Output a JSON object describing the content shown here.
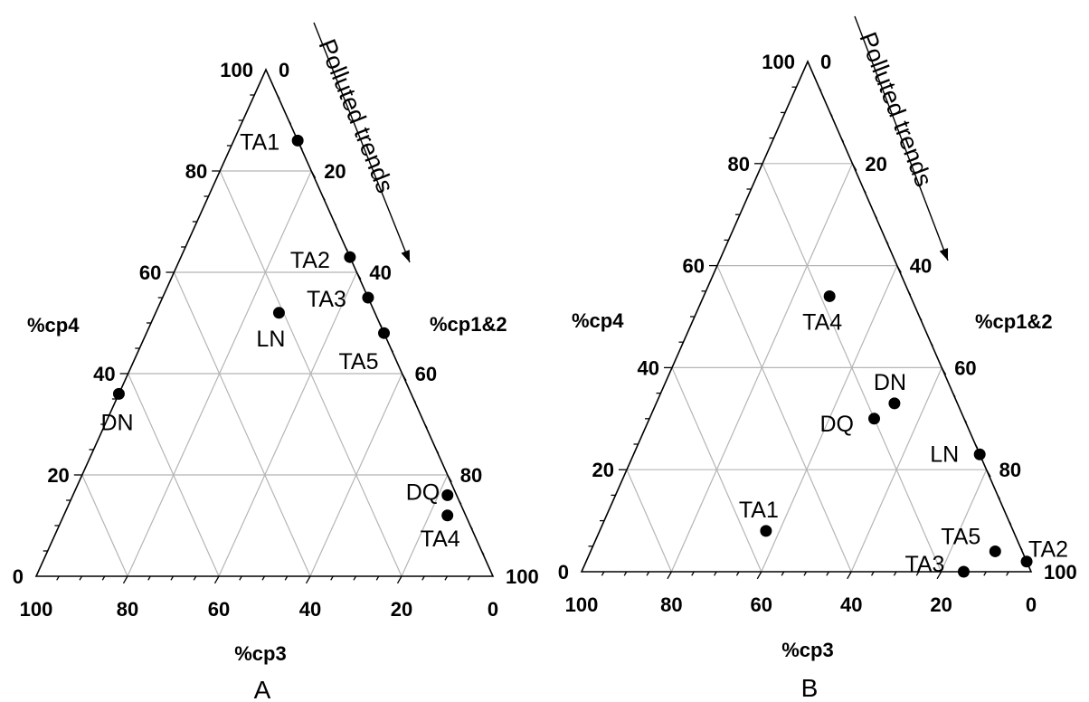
{
  "chart_data": [
    {
      "type": "ternary",
      "panel_label": "A",
      "annotation": "Polluted trends",
      "axes": {
        "left": {
          "title": "%cp4",
          "ticks": [
            "0",
            "20",
            "40",
            "60",
            "80",
            "100"
          ]
        },
        "right": {
          "title": "%cp1&2",
          "ticks": [
            "0",
            "20",
            "40",
            "60",
            "80",
            "100"
          ]
        },
        "bottom": {
          "title": "%cp3",
          "ticks": [
            "100",
            "80",
            "60",
            "40",
            "20",
            "0"
          ]
        }
      },
      "grid": true,
      "points": [
        {
          "label": "TA1",
          "cp4": 86,
          "cp3": 0,
          "cp1_2": 14
        },
        {
          "label": "TA2",
          "cp4": 63,
          "cp3": 0,
          "cp1_2": 37
        },
        {
          "label": "TA3",
          "cp4": 55,
          "cp3": 0,
          "cp1_2": 45
        },
        {
          "label": "TA5",
          "cp4": 48,
          "cp3": 0,
          "cp1_2": 52
        },
        {
          "label": "LN",
          "cp4": 52,
          "cp3": 21,
          "cp1_2": 27
        },
        {
          "label": "DN",
          "cp4": 36,
          "cp3": 64,
          "cp1_2": 0
        },
        {
          "label": "DQ",
          "cp4": 16,
          "cp3": 2,
          "cp1_2": 82
        },
        {
          "label": "TA4",
          "cp4": 12,
          "cp3": 4,
          "cp1_2": 84
        }
      ]
    },
    {
      "type": "ternary",
      "panel_label": "B",
      "annotation": "Polluted trends",
      "axes": {
        "left": {
          "title": "%cp4",
          "ticks": [
            "0",
            "20",
            "40",
            "60",
            "80",
            "100"
          ]
        },
        "right": {
          "title": "%cp1&2",
          "ticks": [
            "0",
            "20",
            "40",
            "60",
            "80",
            "100"
          ]
        },
        "bottom": {
          "title": "%cp3",
          "ticks": [
            "100",
            "80",
            "60",
            "40",
            "20",
            "0"
          ]
        }
      },
      "grid": true,
      "points": [
        {
          "label": "TA4",
          "cp4": 54,
          "cp3": 18,
          "cp1_2": 28
        },
        {
          "label": "DN",
          "cp4": 33,
          "cp3": 14,
          "cp1_2": 53
        },
        {
          "label": "DQ",
          "cp4": 30,
          "cp3": 20,
          "cp1_2": 50
        },
        {
          "label": "LN",
          "cp4": 23,
          "cp3": 0,
          "cp1_2": 77
        },
        {
          "label": "TA1",
          "cp4": 8,
          "cp3": 55,
          "cp1_2": 37
        },
        {
          "label": "TA5",
          "cp4": 4,
          "cp3": 6,
          "cp1_2": 90
        },
        {
          "label": "TA2",
          "cp4": 2,
          "cp3": 0,
          "cp1_2": 98
        },
        {
          "label": "TA3",
          "cp4": 0,
          "cp3": 15,
          "cp1_2": 85
        }
      ]
    }
  ]
}
